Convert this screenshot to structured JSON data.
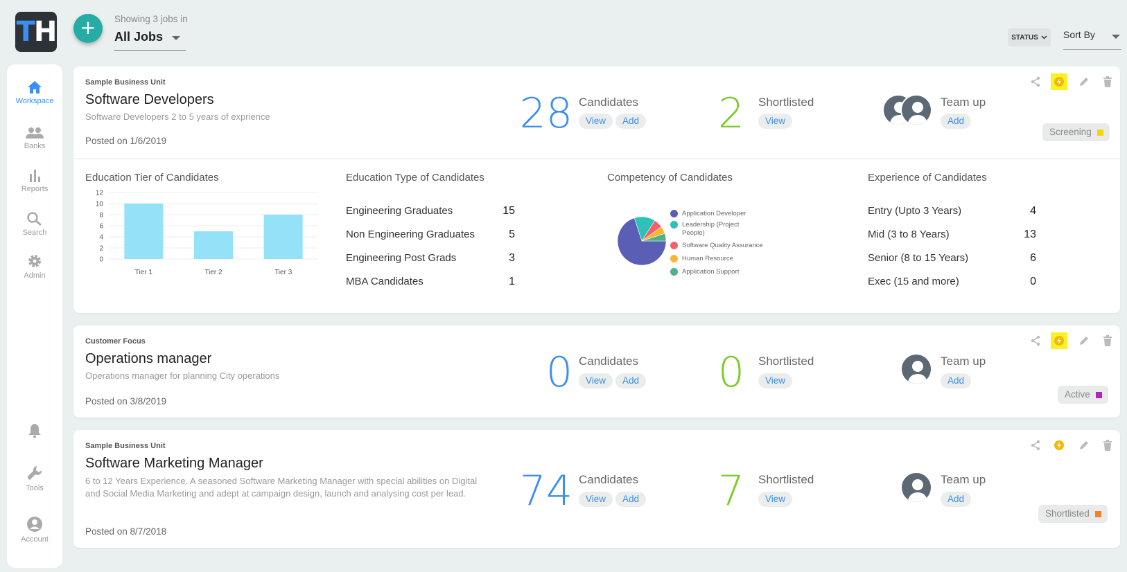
{
  "header": {
    "logo_text_t": "T",
    "logo_text_h": "H",
    "showing_text": "Showing 3 jobs in",
    "job_filter": "All Jobs",
    "status_label": "STATUS",
    "sort_label": "Sort By"
  },
  "sidebar": {
    "items": [
      {
        "label": "Workspace",
        "icon": "home-icon"
      },
      {
        "label": "Banks",
        "icon": "people-icon"
      },
      {
        "label": "Reports",
        "icon": "bar-chart-icon"
      },
      {
        "label": "Search",
        "icon": "search-icon"
      },
      {
        "label": "Admin",
        "icon": "gear-icon"
      },
      {
        "label": "Tools",
        "icon": "wrench-icon"
      },
      {
        "label": "Account",
        "icon": "account-icon"
      }
    ]
  },
  "jobs": [
    {
      "business_unit": "Sample Business Unit",
      "title": "Software Developers",
      "description": "Software Developers 2 to 5 years of exprience",
      "posted": "Posted on 1/6/2019",
      "candidates": "28",
      "shortlisted": "2",
      "status": "Screening",
      "status_color": "#f5d60a"
    },
    {
      "business_unit": "Customer Focus",
      "title": "Operations manager",
      "description": "Operations manager for planning City operations",
      "posted": "Posted on 3/8/2019",
      "candidates": "0",
      "shortlisted": "0",
      "status": "Active",
      "status_color": "#b51fc9"
    },
    {
      "business_unit": "Sample Business Unit",
      "title": "Software Marketing Manager",
      "description": "6 to 12 Years Experience. A seasoned Software Marketing Manager with special abilities on Digital and Social Media Marketing and adept at campaign design, launch and analysing cost per lead.",
      "posted": "Posted on 8/7/2018",
      "candidates": "74",
      "shortlisted": "7",
      "status": "Shortlisted",
      "status_color": "#f5821f"
    }
  ],
  "labels": {
    "candidates": "Candidates",
    "shortlisted": "Shortlisted",
    "team_up": "Team up",
    "view": "View",
    "add": "Add"
  },
  "insights": {
    "education_tier_title": "Education Tier of Candidates",
    "education_type_title": "Education Type of Candidates",
    "competency_title": "Competency of Candidates",
    "experience_title": "Experience of Candidates",
    "education_type": [
      {
        "label": "Engineering Graduates",
        "value": "15"
      },
      {
        "label": "Non Engineering Graduates",
        "value": "5"
      },
      {
        "label": "Engineering Post Grads",
        "value": "3"
      },
      {
        "label": "MBA Candidates",
        "value": "1"
      }
    ],
    "experience": [
      {
        "label": "Entry (Upto 3 Years)",
        "value": "4"
      },
      {
        "label": "Mid (3 to 8 Years)",
        "value": "13"
      },
      {
        "label": "Senior (8 to 15 Years)",
        "value": "6"
      },
      {
        "label": "Exec (15 and more)",
        "value": "0"
      }
    ]
  },
  "chart_data": [
    {
      "type": "bar",
      "categories": [
        "Tier 1",
        "Tier 2",
        "Tier 3"
      ],
      "values": [
        10,
        5,
        8
      ],
      "yticks": [
        0,
        2,
        4,
        6,
        8,
        10,
        12
      ],
      "ylim": [
        0,
        12
      ],
      "grid": true,
      "bar_color": "#93e2f8"
    },
    {
      "type": "pie",
      "labels": [
        "Application Developer",
        "Leadership (Project People)",
        "Software Quality Assurance",
        "Human Resource",
        "Application Support"
      ],
      "values": [
        70,
        14,
        6,
        5,
        5
      ],
      "colors": [
        "#5a5fb5",
        "#2ec1b7",
        "#f2606e",
        "#f7b731",
        "#4fb08a"
      ],
      "legend_position": "right"
    }
  ]
}
